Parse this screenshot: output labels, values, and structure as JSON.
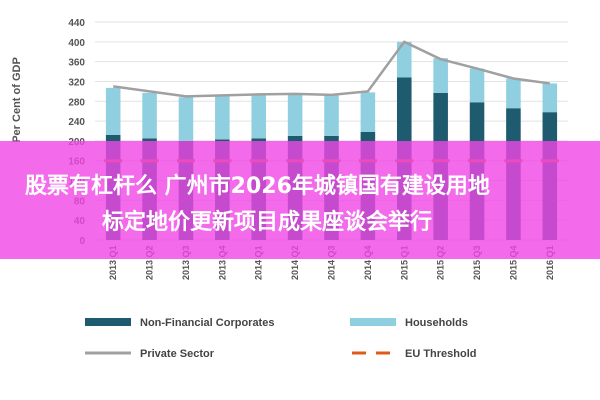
{
  "chart_data": {
    "type": "bar",
    "stacked": true,
    "ylabel": "Per Cent of GDP",
    "ylim": [
      0,
      440
    ],
    "yticks": [
      0,
      40,
      80,
      120,
      160,
      200,
      240,
      280,
      320,
      360,
      400,
      440
    ],
    "categories": [
      "2013 Q1",
      "2013 Q2",
      "2013 Q3",
      "2013 Q4",
      "2014 Q1",
      "2014 Q2",
      "2014 Q3",
      "2014 Q4",
      "2015 Q1",
      "2015 Q2",
      "2015 Q3",
      "2015 Q4",
      "2016 Q1"
    ],
    "series": [
      {
        "name": "Non-Financial Corporates",
        "type": "bar",
        "color": "#1f5b6e",
        "values": [
          212,
          205,
          200,
          203,
          205,
          210,
          210,
          218,
          328,
          297,
          278,
          266,
          258
        ]
      },
      {
        "name": "Households",
        "type": "bar",
        "color": "#8fcfe0",
        "values": [
          95,
          92,
          88,
          90,
          88,
          85,
          82,
          80,
          72,
          70,
          68,
          60,
          58
        ]
      },
      {
        "name": "Private Sector",
        "type": "line",
        "color": "#a0a0a0",
        "values": [
          310,
          300,
          290,
          292,
          294,
          295,
          293,
          300,
          400,
          365,
          346,
          326,
          316
        ]
      },
      {
        "name": "EU Threshold",
        "type": "line",
        "style": "dashed",
        "color": "#e05a1a",
        "values": [
          160,
          160,
          160,
          160,
          160,
          160,
          160,
          160,
          160,
          160,
          160,
          160,
          160
        ]
      }
    ],
    "grid": true,
    "legend_position": "bottom"
  },
  "overlay": {
    "line1": "股票有杠杆么 广州市2026年城镇国有建设用地",
    "line2": "标定地价更新项目成果座谈会举行"
  }
}
